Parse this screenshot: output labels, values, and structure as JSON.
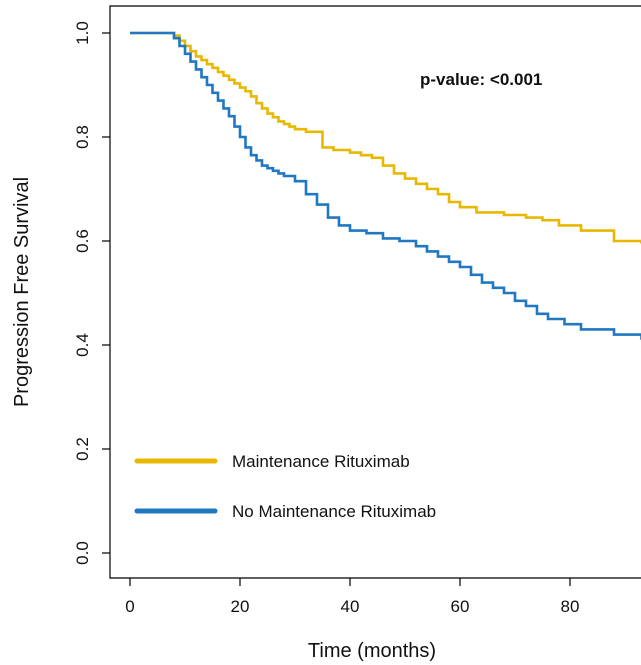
{
  "chart_data": {
    "type": "line",
    "title": "",
    "xlabel": "Time (months)",
    "ylabel": "Progression Free Survival",
    "xlim": [
      -3,
      93
    ],
    "ylim": [
      -0.05,
      1.05
    ],
    "xticks": [
      0,
      20,
      40,
      60,
      80
    ],
    "yticks": [
      0.0,
      0.2,
      0.4,
      0.6,
      0.8,
      1.0
    ],
    "x_tick_labels": [
      "0",
      "20",
      "40",
      "60",
      "80"
    ],
    "y_tick_labels": [
      "0.0",
      "0.2",
      "0.4",
      "0.6",
      "0.8",
      "1.0"
    ],
    "grid": false,
    "legend_position": "bottom-left",
    "annotation": "p-value: <0.001",
    "series": [
      {
        "name": "Maintenance Rituximab",
        "color": "#E8B800",
        "step": true,
        "x": [
          0,
          8,
          9,
          10,
          11,
          12,
          13,
          14,
          15,
          16,
          17,
          18,
          19,
          20,
          21,
          22,
          23,
          24,
          25,
          26,
          27,
          28,
          29,
          30,
          32,
          35,
          37,
          40,
          42,
          44,
          46,
          48,
          50,
          52,
          54,
          56,
          58,
          60,
          63,
          68,
          72,
          75,
          78,
          82,
          88,
          93
        ],
        "y": [
          1.0,
          0.995,
          0.985,
          0.975,
          0.965,
          0.955,
          0.948,
          0.94,
          0.933,
          0.925,
          0.918,
          0.91,
          0.903,
          0.895,
          0.888,
          0.878,
          0.865,
          0.855,
          0.845,
          0.838,
          0.83,
          0.825,
          0.82,
          0.815,
          0.81,
          0.78,
          0.775,
          0.77,
          0.765,
          0.76,
          0.745,
          0.73,
          0.72,
          0.71,
          0.7,
          0.69,
          0.675,
          0.665,
          0.655,
          0.65,
          0.645,
          0.64,
          0.63,
          0.62,
          0.6,
          0.595
        ]
      },
      {
        "name": "No Maintenance Rituximab",
        "color": "#1F78C1",
        "step": true,
        "x": [
          0,
          8,
          9,
          10,
          11,
          12,
          13,
          14,
          15,
          16,
          17,
          18,
          19,
          20,
          21,
          22,
          23,
          24,
          25,
          26,
          27,
          28,
          30,
          32,
          34,
          36,
          38,
          40,
          43,
          46,
          49,
          52,
          54,
          56,
          58,
          60,
          62,
          64,
          66,
          68,
          70,
          72,
          74,
          76,
          79,
          82,
          88,
          93
        ],
        "y": [
          1.0,
          0.99,
          0.975,
          0.96,
          0.945,
          0.93,
          0.915,
          0.9,
          0.885,
          0.87,
          0.855,
          0.84,
          0.82,
          0.8,
          0.78,
          0.765,
          0.755,
          0.745,
          0.74,
          0.735,
          0.73,
          0.725,
          0.715,
          0.69,
          0.67,
          0.645,
          0.63,
          0.62,
          0.615,
          0.605,
          0.6,
          0.59,
          0.58,
          0.57,
          0.56,
          0.55,
          0.535,
          0.52,
          0.51,
          0.5,
          0.485,
          0.475,
          0.46,
          0.45,
          0.44,
          0.43,
          0.42,
          0.41
        ]
      }
    ]
  }
}
